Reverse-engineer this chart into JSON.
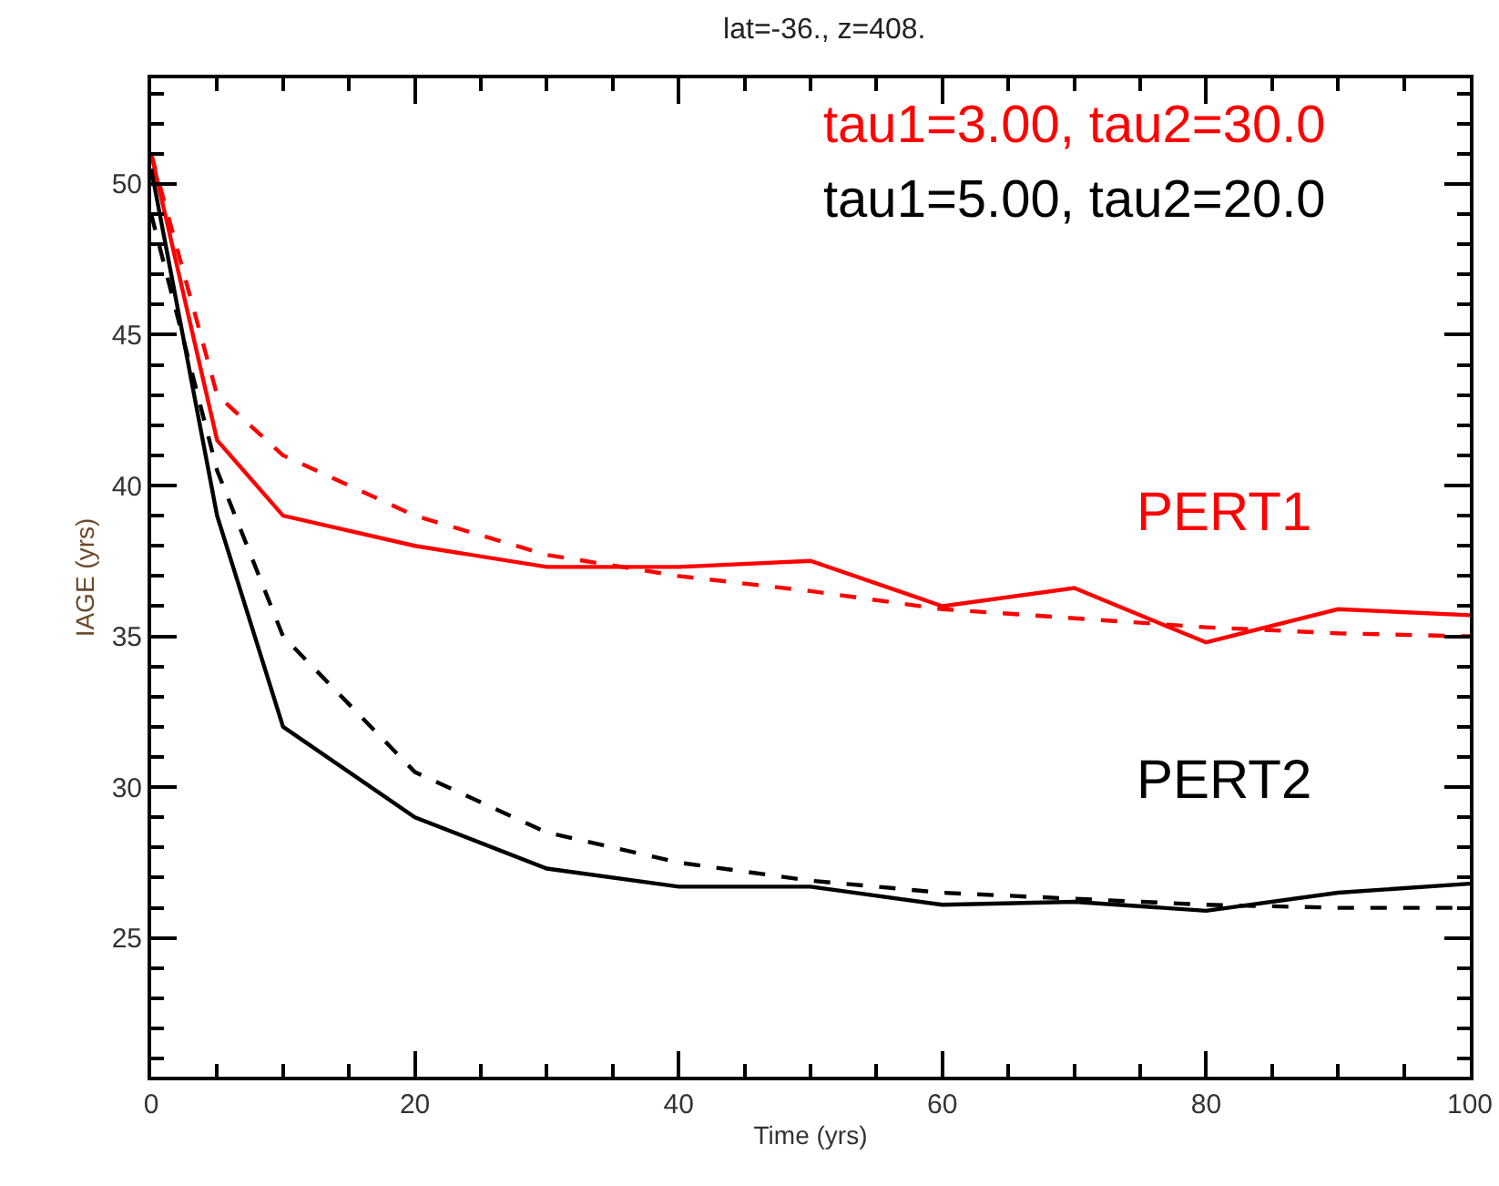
{
  "chart_data": {
    "type": "line",
    "title": "lat=-36., z=408.",
    "xlabel": "Time (yrs)",
    "ylabel": "IAGE (yrs)",
    "x": [
      0,
      5,
      10,
      20,
      30,
      40,
      50,
      60,
      70,
      80,
      90,
      100
    ],
    "series": [
      {
        "name": "PERT1",
        "color": "#ff0000",
        "line_style": "solid",
        "values": [
          51,
          41.5,
          39,
          38,
          37.3,
          37.3,
          37.5,
          36,
          36.6,
          34.8,
          35.9,
          35.7
        ]
      },
      {
        "color": "#ff0000",
        "line_style": "dashed",
        "values": [
          51,
          43,
          41,
          39,
          37.7,
          37,
          36.5,
          35.9,
          35.6,
          35.3,
          35.1,
          35
        ]
      },
      {
        "name": "PERT2",
        "color": "#000000",
        "line_style": "solid",
        "values": [
          50.5,
          39,
          32,
          29,
          27.3,
          26.7,
          26.7,
          26.1,
          26.2,
          25.9,
          26.5,
          26.8
        ]
      },
      {
        "color": "#000000",
        "line_style": "dashed",
        "values": [
          49,
          40.5,
          35,
          30.5,
          28.5,
          27.5,
          26.9,
          26.5,
          26.3,
          26.1,
          26,
          26
        ]
      }
    ],
    "xlim": [
      0,
      100
    ],
    "xticks": [
      0,
      20,
      40,
      60,
      80,
      100
    ],
    "ylim": [
      20.4,
      53.5
    ],
    "yticks": [
      25,
      30,
      35,
      40,
      45,
      50
    ],
    "annotations": [
      "tau1=3.00, tau2=30.0",
      "tau1=5.00, tau2=20.0"
    ],
    "grid": false,
    "legend": false,
    "marker": "none"
  }
}
